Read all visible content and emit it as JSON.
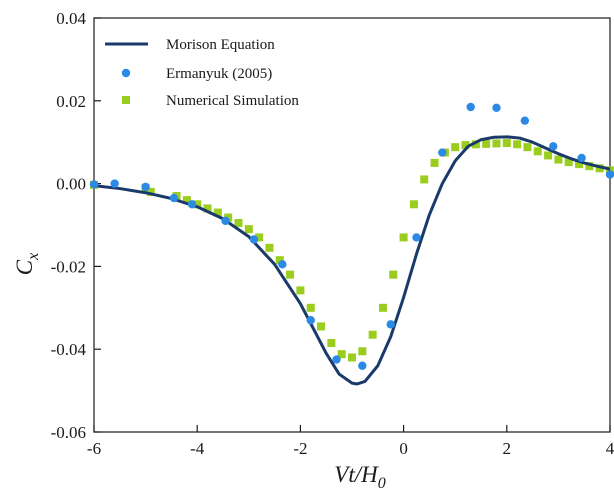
{
  "chart_data": {
    "type": "scatter",
    "title": "",
    "xlabel": "Vt/H0",
    "xlabel_parts": {
      "main": "Vt/H",
      "sub": "0"
    },
    "ylabel": "Cx",
    "ylabel_parts": {
      "main": "C",
      "sub": "x"
    },
    "xlim": [
      -6,
      4
    ],
    "ylim": [
      -0.06,
      0.04
    ],
    "x_ticks": [
      -6,
      -4,
      -2,
      0,
      2,
      4
    ],
    "x_tick_labels": [
      "-6",
      "-4",
      "-2",
      "0",
      "2",
      "4"
    ],
    "y_ticks": [
      -0.06,
      -0.04,
      -0.02,
      0.0,
      0.02,
      0.04
    ],
    "y_tick_labels": [
      "-0.06",
      "-0.04",
      "-0.02",
      "0.00",
      "0.02",
      "0.04"
    ],
    "grid": false,
    "legend_position": "top-left",
    "series": [
      {
        "name": "Morison Equation",
        "kind": "line",
        "color": "#1a3a6b",
        "x": [
          -6.0,
          -5.5,
          -5.0,
          -4.5,
          -4.0,
          -3.5,
          -3.0,
          -2.5,
          -2.0,
          -1.75,
          -1.5,
          -1.25,
          -1.0,
          -0.9,
          -0.75,
          -0.5,
          -0.25,
          0.0,
          0.25,
          0.5,
          0.75,
          1.0,
          1.25,
          1.5,
          1.75,
          2.0,
          2.25,
          2.5,
          2.75,
          3.0,
          3.25,
          3.5,
          3.75,
          4.0
        ],
        "y": [
          -0.0005,
          -0.0012,
          -0.0022,
          -0.0036,
          -0.0056,
          -0.0085,
          -0.0128,
          -0.0195,
          -0.029,
          -0.035,
          -0.041,
          -0.046,
          -0.0482,
          -0.0484,
          -0.0478,
          -0.044,
          -0.037,
          -0.0275,
          -0.017,
          -0.0075,
          0.0,
          0.0055,
          0.009,
          0.0106,
          0.0112,
          0.0113,
          0.011,
          0.01,
          0.0086,
          0.0072,
          0.006,
          0.005,
          0.0042,
          0.0035
        ]
      },
      {
        "name": "Ermanyuk (2005)",
        "kind": "circle",
        "color": "#2b8ae6",
        "x": [
          -6.0,
          -5.6,
          -5.0,
          -4.45,
          -4.1,
          -3.45,
          -2.9,
          -2.35,
          -1.8,
          -1.3,
          -0.8,
          -0.25,
          0.25,
          0.75,
          1.3,
          1.8,
          2.35,
          2.9,
          3.45,
          4.0
        ],
        "y": [
          -0.0002,
          0.0,
          -0.0008,
          -0.0035,
          -0.005,
          -0.009,
          -0.0135,
          -0.0195,
          -0.033,
          -0.0425,
          -0.044,
          -0.034,
          -0.013,
          0.0075,
          0.0185,
          0.0183,
          0.0152,
          0.009,
          0.0062,
          0.0022
        ]
      },
      {
        "name": "Numerical Simulation",
        "kind": "square",
        "color": "#9acd1e",
        "x": [
          -6.0,
          -5.0,
          -4.9,
          -4.4,
          -4.2,
          -4.0,
          -3.8,
          -3.6,
          -3.4,
          -3.2,
          -3.0,
          -2.8,
          -2.6,
          -2.4,
          -2.2,
          -2.0,
          -1.8,
          -1.6,
          -1.4,
          -1.2,
          -1.0,
          -0.8,
          -0.6,
          -0.4,
          -0.2,
          0.0,
          0.2,
          0.4,
          0.6,
          0.8,
          1.0,
          1.2,
          1.4,
          1.6,
          1.8,
          2.0,
          2.2,
          2.4,
          2.6,
          2.8,
          3.0,
          3.2,
          3.4,
          3.6,
          3.8,
          4.0
        ],
        "y": [
          -0.0003,
          -0.001,
          -0.002,
          -0.003,
          -0.004,
          -0.005,
          -0.006,
          -0.007,
          -0.0082,
          -0.0095,
          -0.011,
          -0.013,
          -0.0155,
          -0.0185,
          -0.022,
          -0.0258,
          -0.03,
          -0.0345,
          -0.0385,
          -0.0412,
          -0.042,
          -0.0405,
          -0.0365,
          -0.03,
          -0.022,
          -0.013,
          -0.005,
          0.001,
          0.005,
          0.0075,
          0.0088,
          0.0093,
          0.0095,
          0.0096,
          0.0097,
          0.0098,
          0.0095,
          0.0088,
          0.0078,
          0.0068,
          0.0058,
          0.0052,
          0.0047,
          0.0042,
          0.0037,
          0.0032
        ]
      }
    ]
  }
}
